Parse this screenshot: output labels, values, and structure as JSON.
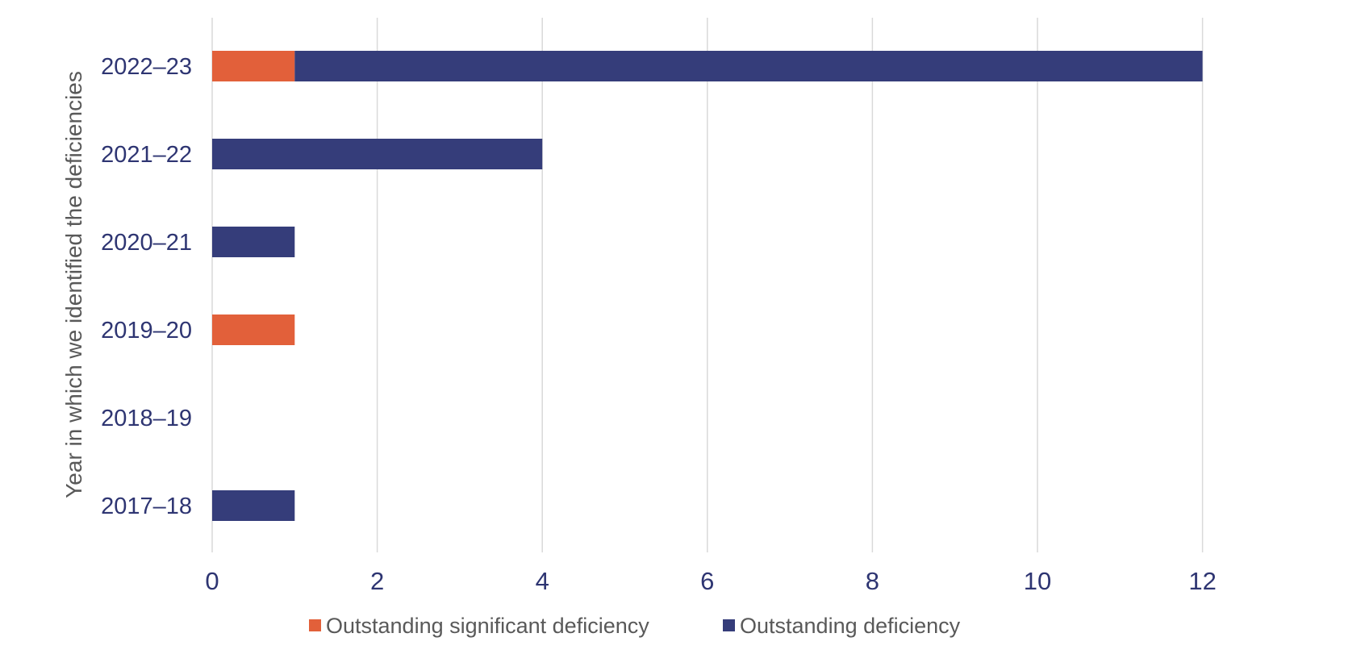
{
  "chart_data": {
    "type": "bar",
    "orientation": "horizontal",
    "stacked": true,
    "categories": [
      "2022–23",
      "2021–22",
      "2020–21",
      "2019–20",
      "2018–19",
      "2017–18"
    ],
    "series": [
      {
        "name": "Outstanding significant deficiency",
        "color": "#E2603A",
        "values": [
          1,
          0,
          0,
          1,
          0,
          0
        ]
      },
      {
        "name": "Outstanding deficiency",
        "color": "#353D7A",
        "values": [
          11,
          4,
          1,
          0,
          0,
          1
        ]
      }
    ],
    "ylabel": "Year in which we identified the deficiencies",
    "xlabel": "",
    "xlim": [
      0,
      14
    ],
    "xticks": [
      "0",
      "2",
      "4",
      "6",
      "8",
      "10",
      "12"
    ],
    "grid": "vertical",
    "legend": "bottom-center",
    "colors": {
      "category_label": "#2E3572",
      "axis_title": "#595959",
      "legend_text": "#595959",
      "gridline": "#D9D9D9"
    }
  }
}
